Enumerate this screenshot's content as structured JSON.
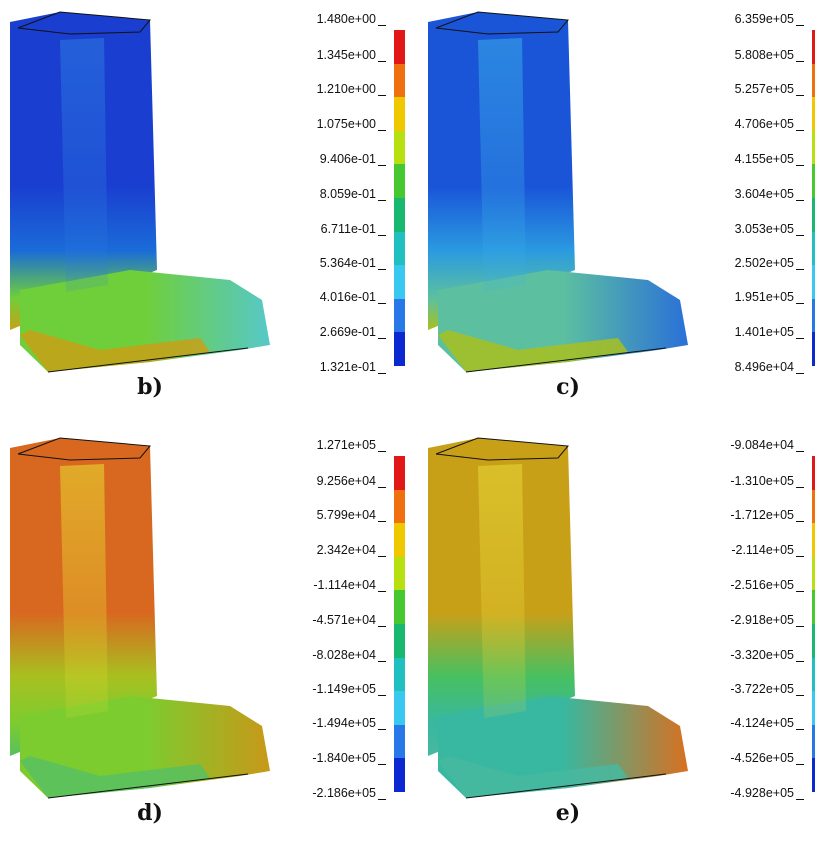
{
  "panels": [
    {
      "caption": "b)",
      "legend": [
        "1.480e+00",
        "1.345e+00",
        "1.210e+00",
        "1.075e+00",
        "9.406e-01",
        "8.059e-01",
        "6.711e-01",
        "5.364e-01",
        "4.016e-01",
        "2.669e-01",
        "1.321e-01"
      ],
      "palette": {
        "upper": "#1a3fd0",
        "lower_left": "#1a6bd8",
        "heel": "#6fcf3a",
        "sole": "#c8a018",
        "toe": "#56c8c8",
        "shin_light": "#2c7ae0"
      }
    },
    {
      "caption": "c)",
      "legend": [
        "6.359e+05",
        "5.808e+05",
        "5.257e+05",
        "4.706e+05",
        "4.155e+05",
        "3.604e+05",
        "3.053e+05",
        "2.502e+05",
        "1.951e+05",
        "1.401e+05",
        "8.496e+04"
      ],
      "palette": {
        "upper": "#1a55d8",
        "lower_left": "#2a9ae0",
        "heel": "#5cc0a0",
        "sole": "#a8c020",
        "toe": "#2a70d8",
        "shin_light": "#3aaee8"
      }
    },
    {
      "caption": "d)",
      "legend": [
        "1.271e+05",
        "9.256e+04",
        "5.799e+04",
        "2.342e+04",
        "-1.114e+04",
        "-4.571e+04",
        "-8.028e+04",
        "-1.149e+05",
        "-1.494e+05",
        "-1.840e+05",
        "-2.186e+05"
      ],
      "palette": {
        "upper": "#d86820",
        "lower_left": "#a8c020",
        "heel": "#7ccc30",
        "sole": "#58c060",
        "toe": "#c89818",
        "shin_light": "#e8e030"
      }
    },
    {
      "caption": "e)",
      "legend": [
        "-9.084e+04",
        "-1.310e+05",
        "-1.712e+05",
        "-2.114e+05",
        "-2.516e+05",
        "-2.918e+05",
        "-3.320e+05",
        "-3.722e+05",
        "-4.124e+05",
        "-4.526e+05",
        "-4.928e+05"
      ],
      "palette": {
        "upper": "#c8a018",
        "lower_left": "#48c060",
        "heel": "#38b8a0",
        "sole": "#48b8a0",
        "toe": "#d87020",
        "shin_light": "#e8d838"
      }
    }
  ],
  "legend_colors": [
    "#e01818",
    "#f07010",
    "#f0c800",
    "#b8e010",
    "#48c830",
    "#18b870",
    "#20c0c0",
    "#38c8f0",
    "#2878e8",
    "#0c28d0"
  ]
}
